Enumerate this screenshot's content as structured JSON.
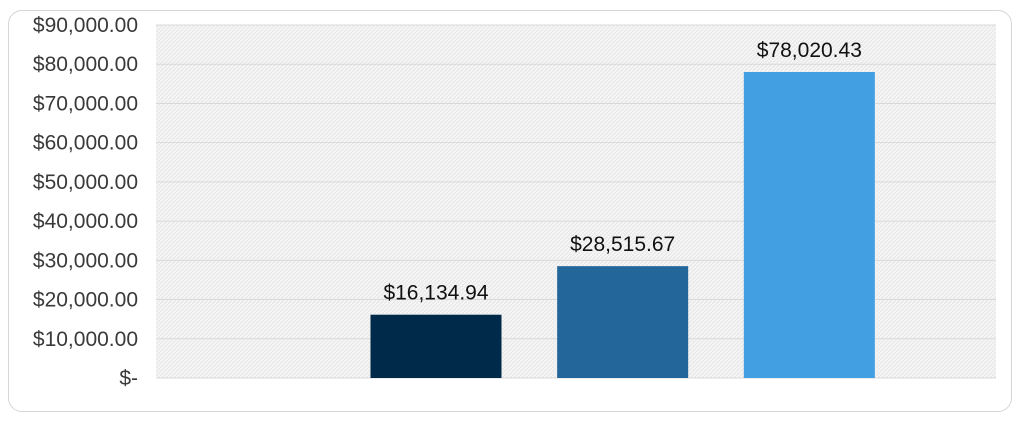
{
  "chart_data": {
    "type": "bar",
    "categories": [
      "",
      "",
      ""
    ],
    "values": [
      16134.94,
      28515.67,
      78020.43
    ],
    "data_labels": [
      "$16,134.94",
      "$28,515.67",
      "$78,020.43"
    ],
    "bar_colors": [
      "#002a49",
      "#23669a",
      "#429fe2"
    ],
    "ylim": [
      0,
      90000
    ],
    "yticks": [
      0,
      10000,
      20000,
      30000,
      40000,
      50000,
      60000,
      70000,
      80000,
      90000
    ],
    "ytick_labels": [
      "$-",
      "$10,000.00",
      "$20,000.00",
      "$30,000.00",
      "$40,000.00",
      "$50,000.00",
      "$60,000.00",
      "$70,000.00",
      "$80,000.00",
      "$90,000.00"
    ],
    "grid": true,
    "legend": "none",
    "plot_background": "#f4f4f4",
    "gridline_color": "#d9d9d9"
  }
}
